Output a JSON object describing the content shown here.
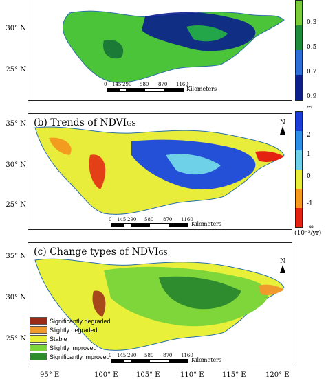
{
  "panels": {
    "a": {
      "title": "",
      "lat_labels": [
        "30° N",
        "25° N"
      ],
      "scale": {
        "ticks": [
          "0",
          "145",
          "290",
          "580",
          "870",
          "1160"
        ],
        "unit": "Kilometers"
      },
      "colorbar": {
        "labels": [
          "0.3",
          "0.5",
          "0.7",
          "0.9"
        ],
        "colors": [
          "#7CCB3A",
          "#1E8C3C",
          "#2D6FD6",
          "#0B1E8A"
        ]
      }
    },
    "b": {
      "title_main": "(b) Trends of NDVI",
      "title_sub": "GS",
      "north_label": "N",
      "lat_labels": [
        "35° N",
        "30° N",
        "25° N"
      ],
      "scale": {
        "ticks": [
          "0",
          "145",
          "290",
          "580",
          "870",
          "1160"
        ],
        "unit": "Kilometers"
      },
      "colorbar": {
        "labels": [
          "∞",
          "2",
          "1",
          "0",
          "-1",
          "-∞"
        ],
        "unit": "(10⁻³/yr)",
        "colors": [
          "#1B3FD6",
          "#2E8FE6",
          "#6FD1E8",
          "#E8EC3A",
          "#F39B1E",
          "#E32212"
        ]
      }
    },
    "c": {
      "title_main": "(c) Change types of NDVI",
      "title_sub": "GS",
      "north_label": "N",
      "lat_labels": [
        "35° N",
        "30° N",
        "25° N"
      ],
      "scale": {
        "ticks": [
          "0",
          "145",
          "290",
          "580",
          "870",
          "1160"
        ],
        "unit": "Kilometers"
      },
      "legend": [
        {
          "label": "Significantly degraded",
          "color": "#9B2A17"
        },
        {
          "label": "Slightly degraded",
          "color": "#F09A2E"
        },
        {
          "label": "Stable",
          "color": "#E8F03A"
        },
        {
          "label": "Slightly improved",
          "color": "#7ED63A"
        },
        {
          "label": "Significantly improved",
          "color": "#2E8C2E"
        }
      ]
    }
  },
  "lon_labels": [
    "95° E",
    "100° E",
    "105° E",
    "110° E",
    "115° E",
    "120° E"
  ]
}
